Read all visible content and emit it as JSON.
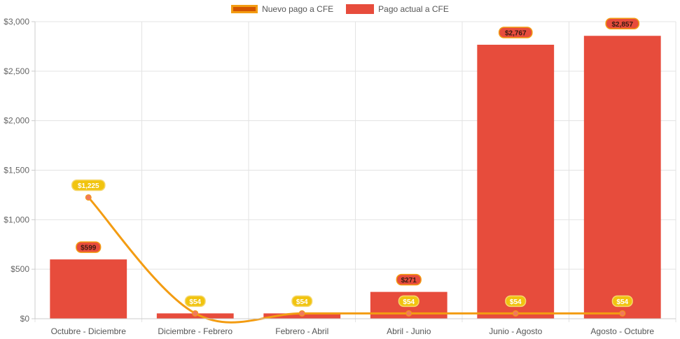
{
  "chart_data": {
    "type": "bar",
    "categories": [
      "Octubre - Diciembre",
      "Diciembre - Febrero",
      "Febrero - Abril",
      "Abril - Junio",
      "Junio - Agosto",
      "Agosto - Octubre"
    ],
    "series": [
      {
        "name": "Nuevo pago a CFE",
        "type": "line",
        "values": [
          1225,
          54,
          54,
          54,
          54,
          54
        ],
        "labels": [
          "$1,225",
          "$54",
          "$54",
          "$54",
          "$54",
          "$54"
        ],
        "color": "#f39c12",
        "fill": "#d35400"
      },
      {
        "name": "Pago actual a CFE",
        "type": "bar",
        "values": [
          599,
          54,
          54,
          271,
          2767,
          2857
        ],
        "labels": [
          "$599",
          "",
          "",
          "$271",
          "$2,767",
          "$2,857"
        ],
        "color": "#e74c3c"
      }
    ],
    "ylim": [
      0,
      3000
    ],
    "yticks": [
      0,
      500,
      1000,
      1500,
      2000,
      2500,
      3000
    ],
    "ytick_labels": [
      "$0",
      "$500",
      "$1,000",
      "$1,500",
      "$2,000",
      "$2,500",
      "$3,000"
    ],
    "legend_position": "top",
    "grid": true
  }
}
